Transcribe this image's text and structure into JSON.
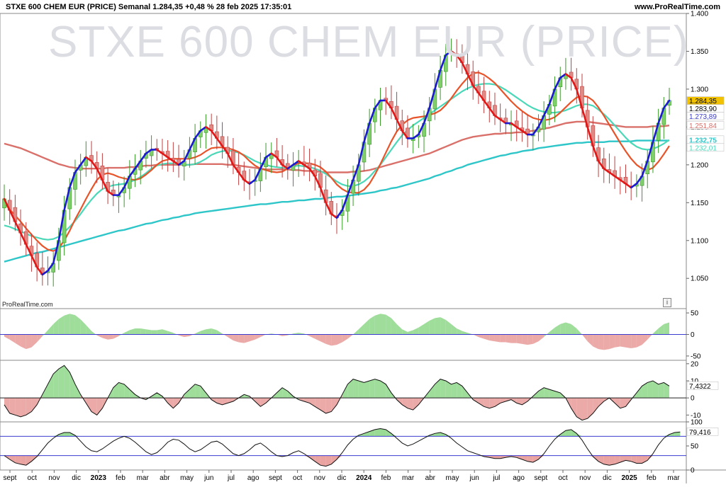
{
  "header": {
    "title": "STXE 600 CHEM EUR (PRICE) Semanal 1.284,35 +0,48 % 28 feb 2025 17:35:01",
    "site": "www.ProRealTime.com",
    "watermark": "STXE 600 CHEM EUR (PRICE)",
    "source": "ProRealTime.com",
    "info_icon": "i"
  },
  "colors": {
    "up": "#3a9a2a",
    "up_body": "#7fcf6a",
    "down": "#c04040",
    "down_body": "#e08a86",
    "sma10": "#e8542a",
    "sma20": "#4bd8b8",
    "sma50": "#d9706a",
    "sma200": "#2ec6c8",
    "trend_up": "#1a1ad0",
    "trend_down": "#e01818",
    "hline": "#3b3bd0"
  },
  "chart_data": [
    {
      "type": "candlestick",
      "title": "STXE 600 CHEM EUR (PRICE)",
      "ylim": [
        1.01,
        1.4
      ],
      "yticks": [
        1.05,
        1.1,
        1.15,
        1.2,
        1.25,
        1.3,
        1.35,
        1.4
      ],
      "ytick_labels": [
        "1.050",
        "1.100",
        "1.150",
        "1.200",
        "1.250",
        "1.300",
        "1.350",
        "1.400"
      ],
      "x_labels": [
        "sept",
        "oct",
        "nov",
        "dic",
        "2023",
        "feb",
        "mar",
        "abr",
        "may",
        "jun",
        "jul",
        "ago",
        "sept",
        "oct",
        "nov",
        "dic",
        "2024",
        "feb",
        "mar",
        "abr",
        "may",
        "jun",
        "jul",
        "ago",
        "sept",
        "oct",
        "nov",
        "dic",
        "2025",
        "feb",
        "mar"
      ],
      "close": [
        1.155,
        1.14,
        1.125,
        1.11,
        1.095,
        1.08,
        1.065,
        1.055,
        1.06,
        1.07,
        1.1,
        1.14,
        1.17,
        1.19,
        1.2,
        1.21,
        1.205,
        1.195,
        1.18,
        1.165,
        1.16,
        1.16,
        1.17,
        1.185,
        1.195,
        1.205,
        1.215,
        1.22,
        1.22,
        1.215,
        1.21,
        1.205,
        1.2,
        1.205,
        1.22,
        1.235,
        1.245,
        1.25,
        1.245,
        1.235,
        1.225,
        1.215,
        1.2,
        1.19,
        1.18,
        1.175,
        1.18,
        1.195,
        1.21,
        1.215,
        1.21,
        1.2,
        1.195,
        1.2,
        1.205,
        1.2,
        1.195,
        1.185,
        1.17,
        1.15,
        1.135,
        1.13,
        1.14,
        1.16,
        1.18,
        1.2,
        1.23,
        1.255,
        1.275,
        1.285,
        1.285,
        1.275,
        1.26,
        1.245,
        1.235,
        1.235,
        1.24,
        1.255,
        1.275,
        1.3,
        1.325,
        1.345,
        1.35,
        1.345,
        1.335,
        1.32,
        1.305,
        1.295,
        1.285,
        1.275,
        1.265,
        1.26,
        1.255,
        1.255,
        1.25,
        1.245,
        1.24,
        1.24,
        1.25,
        1.265,
        1.28,
        1.3,
        1.315,
        1.32,
        1.315,
        1.3,
        1.275,
        1.25,
        1.225,
        1.205,
        1.195,
        1.19,
        1.185,
        1.18,
        1.175,
        1.17,
        1.175,
        1.185,
        1.205,
        1.23,
        1.255,
        1.275,
        1.285
      ],
      "sma10": [
        1.15,
        1.141,
        1.133,
        1.125,
        1.116,
        1.108,
        1.1,
        1.093,
        1.088,
        1.086,
        1.09,
        1.1,
        1.113,
        1.128,
        1.141,
        1.155,
        1.168,
        1.18,
        1.187,
        1.189,
        1.187,
        1.184,
        1.182,
        1.181,
        1.18,
        1.182,
        1.187,
        1.193,
        1.2,
        1.205,
        1.207,
        1.208,
        1.208,
        1.208,
        1.208,
        1.21,
        1.213,
        1.218,
        1.222,
        1.223,
        1.223,
        1.222,
        1.22,
        1.217,
        1.212,
        1.205,
        1.199,
        1.195,
        1.193,
        1.191,
        1.19,
        1.191,
        1.195,
        1.199,
        1.202,
        1.202,
        1.202,
        1.2,
        1.197,
        1.191,
        1.183,
        1.174,
        1.168,
        1.164,
        1.163,
        1.163,
        1.167,
        1.175,
        1.187,
        1.201,
        1.216,
        1.231,
        1.244,
        1.253,
        1.259,
        1.262,
        1.263,
        1.264,
        1.266,
        1.268,
        1.272,
        1.279,
        1.288,
        1.298,
        1.307,
        1.315,
        1.321,
        1.322,
        1.319,
        1.314,
        1.308,
        1.3,
        1.292,
        1.284,
        1.277,
        1.271,
        1.266,
        1.262,
        1.26,
        1.259,
        1.26,
        1.263,
        1.269,
        1.276,
        1.283,
        1.289,
        1.291,
        1.29,
        1.285,
        1.276,
        1.265,
        1.253,
        1.241,
        1.229,
        1.218,
        1.208,
        1.2,
        1.195,
        1.193,
        1.196,
        1.204,
        1.214,
        1.225
      ],
      "sma20": [
        1.12,
        1.118,
        1.115,
        1.112,
        1.109,
        1.106,
        1.104,
        1.102,
        1.101,
        1.102,
        1.105,
        1.111,
        1.118,
        1.126,
        1.135,
        1.145,
        1.154,
        1.162,
        1.168,
        1.171,
        1.173,
        1.174,
        1.175,
        1.177,
        1.18,
        1.184,
        1.189,
        1.195,
        1.199,
        1.201,
        1.202,
        1.202,
        1.201,
        1.2,
        1.2,
        1.201,
        1.204,
        1.208,
        1.213,
        1.216,
        1.218,
        1.219,
        1.218,
        1.216,
        1.213,
        1.209,
        1.205,
        1.202,
        1.2,
        1.198,
        1.197,
        1.196,
        1.197,
        1.198,
        1.199,
        1.198,
        1.197,
        1.195,
        1.192,
        1.188,
        1.183,
        1.178,
        1.174,
        1.172,
        1.172,
        1.174,
        1.178,
        1.184,
        1.192,
        1.2,
        1.21,
        1.22,
        1.23,
        1.239,
        1.246,
        1.252,
        1.257,
        1.262,
        1.267,
        1.272,
        1.277,
        1.282,
        1.287,
        1.292,
        1.297,
        1.301,
        1.304,
        1.306,
        1.307,
        1.307,
        1.306,
        1.303,
        1.299,
        1.294,
        1.289,
        1.284,
        1.279,
        1.275,
        1.272,
        1.27,
        1.269,
        1.269,
        1.27,
        1.272,
        1.275,
        1.278,
        1.28,
        1.28,
        1.278,
        1.273,
        1.267,
        1.26,
        1.252,
        1.244,
        1.236,
        1.229,
        1.224,
        1.221,
        1.22,
        1.221,
        1.224,
        1.228,
        1.233
      ],
      "sma50": [
        1.228,
        1.226,
        1.224,
        1.222,
        1.219,
        1.216,
        1.213,
        1.21,
        1.207,
        1.204,
        1.201,
        1.199,
        1.197,
        1.196,
        1.195,
        1.195,
        1.195,
        1.195,
        1.195,
        1.196,
        1.196,
        1.196,
        1.196,
        1.197,
        1.197,
        1.198,
        1.199,
        1.199,
        1.2,
        1.2,
        1.2,
        1.2,
        1.2,
        1.2,
        1.2,
        1.201,
        1.201,
        1.201,
        1.201,
        1.201,
        1.201,
        1.2,
        1.2,
        1.199,
        1.198,
        1.197,
        1.196,
        1.195,
        1.194,
        1.194,
        1.194,
        1.194,
        1.194,
        1.193,
        1.193,
        1.192,
        1.192,
        1.191,
        1.191,
        1.19,
        1.19,
        1.19,
        1.19,
        1.19,
        1.191,
        1.191,
        1.192,
        1.193,
        1.195,
        1.197,
        1.199,
        1.201,
        1.203,
        1.205,
        1.207,
        1.209,
        1.211,
        1.213,
        1.215,
        1.218,
        1.221,
        1.224,
        1.227,
        1.23,
        1.233,
        1.235,
        1.237,
        1.238,
        1.239,
        1.24,
        1.241,
        1.241,
        1.242,
        1.242,
        1.243,
        1.243,
        1.244,
        1.245,
        1.246,
        1.248,
        1.249,
        1.251,
        1.253,
        1.255,
        1.256,
        1.257,
        1.257,
        1.257,
        1.256,
        1.255,
        1.254,
        1.253,
        1.252,
        1.251,
        1.25,
        1.25,
        1.25,
        1.25,
        1.25,
        1.251,
        1.251,
        1.251,
        1.252
      ],
      "sma200": [
        1.072,
        1.074,
        1.076,
        1.078,
        1.08,
        1.082,
        1.084,
        1.085,
        1.087,
        1.089,
        1.091,
        1.093,
        1.095,
        1.097,
        1.099,
        1.101,
        1.103,
        1.105,
        1.107,
        1.109,
        1.111,
        1.113,
        1.114,
        1.116,
        1.118,
        1.12,
        1.122,
        1.123,
        1.125,
        1.127,
        1.128,
        1.13,
        1.131,
        1.133,
        1.134,
        1.136,
        1.137,
        1.138,
        1.139,
        1.14,
        1.141,
        1.142,
        1.143,
        1.144,
        1.145,
        1.146,
        1.147,
        1.148,
        1.148,
        1.149,
        1.15,
        1.151,
        1.151,
        1.152,
        1.153,
        1.153,
        1.154,
        1.155,
        1.155,
        1.156,
        1.157,
        1.158,
        1.158,
        1.159,
        1.16,
        1.161,
        1.162,
        1.163,
        1.164,
        1.166,
        1.167,
        1.169,
        1.17,
        1.172,
        1.174,
        1.176,
        1.178,
        1.18,
        1.182,
        1.185,
        1.187,
        1.19,
        1.192,
        1.195,
        1.197,
        1.2,
        1.202,
        1.204,
        1.206,
        1.208,
        1.21,
        1.212,
        1.213,
        1.215,
        1.216,
        1.218,
        1.219,
        1.22,
        1.222,
        1.223,
        1.224,
        1.225,
        1.226,
        1.227,
        1.228,
        1.229,
        1.229,
        1.23,
        1.23,
        1.23,
        1.23,
        1.231,
        1.231,
        1.231,
        1.231,
        1.231,
        1.232,
        1.232,
        1.232,
        1.232,
        1.232,
        1.232,
        1.232
      ],
      "price_labels": [
        {
          "text": "1.284,35",
          "value": 1.28435,
          "bg": "#f2c200",
          "fg": "#000000"
        },
        {
          "text": "1.283,90",
          "value": 1.2839,
          "bg": "#ffffff",
          "fg": "#000000"
        },
        {
          "text": "1.273,89",
          "value": 1.27389,
          "bg": "#ffffff",
          "fg": "#3b3bd0"
        },
        {
          "text": "1.251,84",
          "value": 1.25184,
          "bg": "#ffffff",
          "fg": "#d9706a"
        },
        {
          "text": "1.232,75",
          "value": 1.23275,
          "bg": "#ffffff",
          "fg": "#2ec6c8"
        },
        {
          "text": "1.232,01",
          "value": 1.23201,
          "bg": "#ffffff",
          "fg": "#4bd8b8"
        }
      ]
    },
    {
      "type": "area",
      "ylim": [
        -60,
        60
      ],
      "yticks": [
        50,
        0,
        -50
      ],
      "ytick_labels": [
        "50",
        "0",
        "-50"
      ],
      "hline": 0,
      "values": [
        -5,
        -12,
        -20,
        -28,
        -34,
        -30,
        -18,
        -4,
        10,
        24,
        36,
        44,
        48,
        45,
        35,
        22,
        8,
        -2,
        -8,
        -12,
        -10,
        -4,
        4,
        10,
        14,
        14,
        12,
        10,
        10,
        12,
        8,
        4,
        -2,
        -6,
        -4,
        2,
        8,
        12,
        14,
        10,
        2,
        -6,
        -14,
        -18,
        -20,
        -16,
        -12,
        -6,
        0,
        2,
        0,
        -4,
        -2,
        2,
        4,
        2,
        -4,
        -10,
        -16,
        -22,
        -26,
        -24,
        -18,
        -10,
        0,
        12,
        24,
        36,
        44,
        48,
        46,
        38,
        24,
        12,
        6,
        10,
        16,
        24,
        32,
        38,
        40,
        34,
        24,
        14,
        8,
        4,
        0,
        -6,
        -10,
        -14,
        -16,
        -18,
        -18,
        -20,
        -20,
        -22,
        -24,
        -22,
        -16,
        -6,
        6,
        16,
        24,
        28,
        24,
        14,
        0,
        -16,
        -28,
        -34,
        -36,
        -34,
        -30,
        -28,
        -30,
        -32,
        -30,
        -24,
        -12,
        2,
        14,
        24,
        28
      ]
    },
    {
      "type": "area",
      "ylim": [
        -14,
        22
      ],
      "yticks": [
        20,
        10,
        0,
        -10
      ],
      "ytick_labels": [
        "20",
        "10",
        "0",
        "-10"
      ],
      "hline": 0,
      "value_label": "7,4322",
      "values": [
        -4,
        -9,
        -10,
        -11,
        -10,
        -8,
        -4,
        2,
        8,
        14,
        17,
        19,
        15,
        8,
        2,
        -3,
        -8,
        -10,
        -6,
        0,
        6,
        9,
        8,
        5,
        2,
        0,
        -1,
        1,
        3,
        1,
        -3,
        -6,
        -3,
        2,
        5,
        8,
        7,
        3,
        -1,
        -3,
        -4,
        -3,
        -2,
        0,
        2,
        1,
        -2,
        -5,
        -3,
        0,
        3,
        6,
        4,
        1,
        -1,
        -2,
        -3,
        -5,
        -7,
        -9,
        -8,
        -4,
        2,
        8,
        11,
        10,
        9,
        10,
        11,
        10,
        8,
        3,
        -1,
        -4,
        -6,
        -7,
        -4,
        0,
        4,
        8,
        11,
        10,
        8,
        9,
        7,
        3,
        -1,
        -3,
        -5,
        -6,
        -5,
        -3,
        -2,
        -1,
        -3,
        -4,
        -2,
        1,
        4,
        6,
        5,
        4,
        3,
        0,
        -6,
        -11,
        -13,
        -12,
        -9,
        -5,
        -2,
        0,
        -3,
        -6,
        -5,
        -1,
        3,
        7,
        9,
        10,
        8,
        9,
        7
      ],
      "line_color": "#111111"
    },
    {
      "type": "line",
      "ylim": [
        0,
        100
      ],
      "yticks": [
        100,
        50,
        0
      ],
      "ytick_labels": [
        "100",
        "50",
        "0"
      ],
      "hlines": [
        70,
        30
      ],
      "value_label": "79,416",
      "values": [
        30,
        22,
        15,
        12,
        10,
        18,
        28,
        42,
        56,
        66,
        74,
        78,
        78,
        72,
        60,
        48,
        40,
        38,
        44,
        52,
        60,
        66,
        70,
        66,
        58,
        48,
        38,
        32,
        36,
        46,
        58,
        64,
        62,
        54,
        44,
        38,
        42,
        50,
        58,
        60,
        54,
        44,
        34,
        30,
        34,
        42,
        52,
        56,
        48,
        38,
        30,
        28,
        30,
        36,
        40,
        34,
        26,
        18,
        10,
        8,
        12,
        22,
        36,
        52,
        64,
        72,
        76,
        80,
        84,
        86,
        84,
        76,
        66,
        56,
        50,
        54,
        60,
        66,
        72,
        76,
        78,
        74,
        66,
        56,
        48,
        40,
        36,
        32,
        28,
        26,
        24,
        24,
        26,
        28,
        26,
        22,
        18,
        16,
        22,
        34,
        50,
        64,
        74,
        82,
        84,
        76,
        62,
        44,
        28,
        18,
        12,
        10,
        12,
        16,
        20,
        18,
        14,
        14,
        20,
        34,
        52,
        66,
        74,
        78,
        79
      ]
    }
  ]
}
